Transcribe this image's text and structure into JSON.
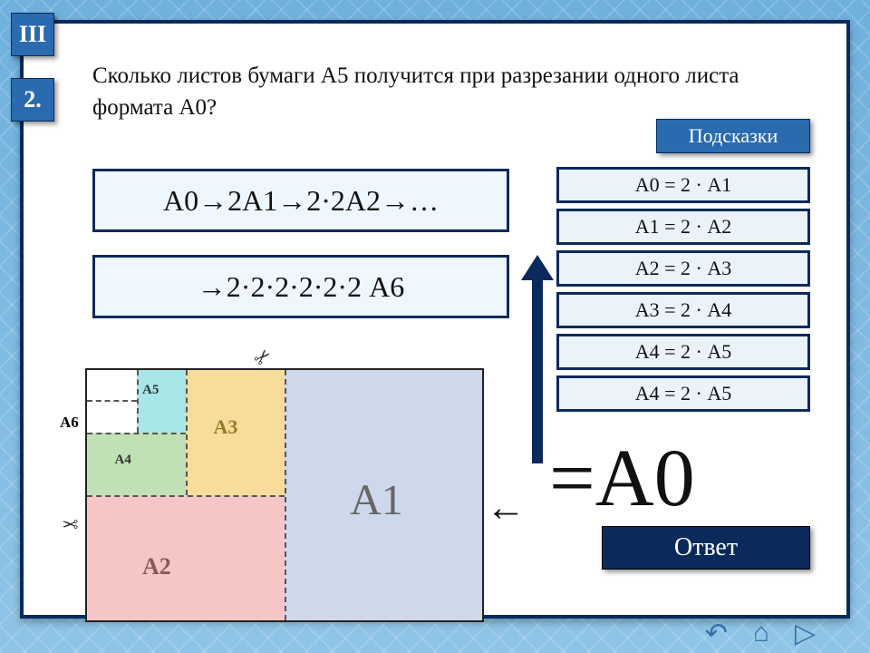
{
  "badges": {
    "roman": "III",
    "number": "2."
  },
  "question": "Сколько листов бумаги А5 получится при разрезании одного листа формата А0?",
  "hints_button": "Подсказки",
  "hints": [
    "А0 = 2 · А1",
    "А1 = 2 · А2",
    "А2 = 2 · А3",
    "А3 = 2 · А4",
    "А4 = 2 · А5",
    "А4 = 2 · А5"
  ],
  "formulas": {
    "line1": "А0→2А1→2·2А2→…",
    "line2": "→2·2·2·2·2·2 А6"
  },
  "diagram": {
    "outside_label": "А6",
    "labels": {
      "A1": "A1",
      "A2": "A2",
      "A3": "A3",
      "A4": "А4",
      "A5": "А5"
    },
    "colors": {
      "A1": "#cdd8ea",
      "A2": "#f6c6c6",
      "A3": "#f7dc9a",
      "A4": "#bfe1b5",
      "A5": "#a8e7e8",
      "A6": "#ffffff",
      "border": "#222222",
      "dash": "#555555"
    }
  },
  "scissors_glyph": "✂",
  "arrow_left_glyph": "←",
  "a0_text": "=А0",
  "answer_button": "Ответ",
  "nav": {
    "back": "↶",
    "home": "⌂",
    "next": "▷"
  },
  "palette": {
    "frame_border": "#0a2a5c",
    "badge_bg": "#2a6bb0",
    "hint_bg": "#eaf2fa",
    "formula_bg": "#eef7fd",
    "answer_bg": "#0a2a5c",
    "page_bg": "#ffffff"
  }
}
